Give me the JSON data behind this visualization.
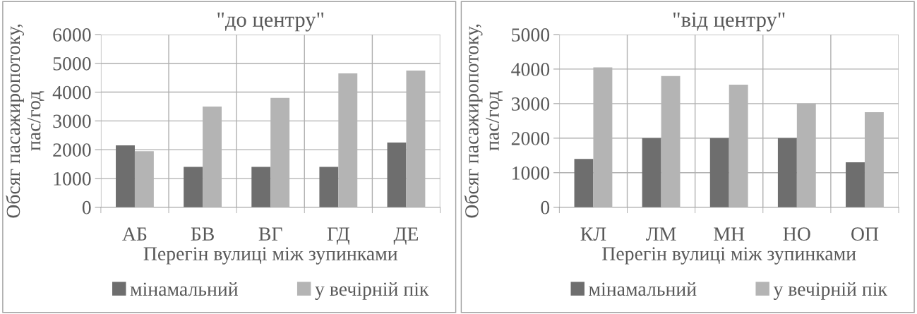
{
  "chart_data": [
    {
      "type": "bar",
      "title": "\"до центру\"",
      "xlabel": "Перегін вулиці між зупинками",
      "ylabel": "Обсяг пасажиропотоку,\nпас/год",
      "categories": [
        "АБ",
        "БВ",
        "ВГ",
        "ГД",
        "ДЕ"
      ],
      "series": [
        {
          "name": "мінамальний",
          "color": "#6e6e6e",
          "values": [
            2150,
            1400,
            1400,
            1400,
            2250
          ]
        },
        {
          "name": "у вечірній пік",
          "color": "#b4b4b4",
          "values": [
            1950,
            3500,
            3800,
            4650,
            4750
          ]
        }
      ],
      "ylim": [
        0,
        6000
      ],
      "yticks": [
        0,
        1000,
        2000,
        3000,
        4000,
        5000,
        6000
      ],
      "grid": true,
      "legend": "bottom"
    },
    {
      "type": "bar",
      "title": "\"від центру\"",
      "xlabel": "Перегін вулиці між зупинками",
      "ylabel": "Обсяг пасажиропотоку,\nпас/год",
      "categories": [
        "КЛ",
        "ЛМ",
        "МН",
        "НО",
        "ОП"
      ],
      "series": [
        {
          "name": "мінамальний",
          "color": "#6e6e6e",
          "values": [
            1400,
            2000,
            2000,
            2000,
            1300
          ]
        },
        {
          "name": "у вечірній пік",
          "color": "#b4b4b4",
          "values": [
            4050,
            3800,
            3550,
            3000,
            2750
          ]
        }
      ],
      "ylim": [
        0,
        5000
      ],
      "yticks": [
        0,
        1000,
        2000,
        3000,
        4000,
        5000
      ],
      "grid": true,
      "legend": "bottom"
    }
  ]
}
